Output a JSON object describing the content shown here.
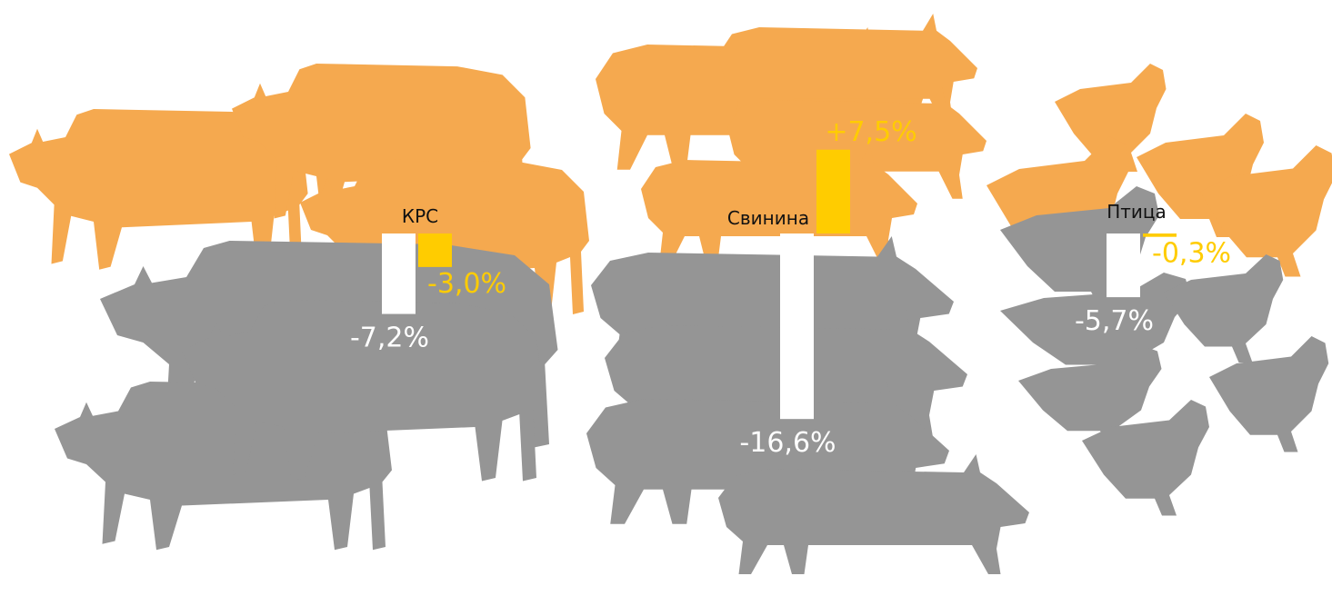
{
  "chart_data": {
    "type": "bar",
    "categories": [
      "КРС",
      "Свинина",
      "Птица"
    ],
    "series": [
      {
        "color": "#ffffff",
        "values": [
          -7.2,
          -16.6,
          -5.7
        ],
        "value_labels": [
          "-7,2%",
          "-16,6%",
          "-5,7%"
        ]
      },
      {
        "color": "#ffcc00",
        "values": [
          -3.0,
          7.5,
          -0.3
        ],
        "value_labels": [
          "-3,0%",
          "+7,5%",
          "-0,3%"
        ]
      }
    ]
  }
}
